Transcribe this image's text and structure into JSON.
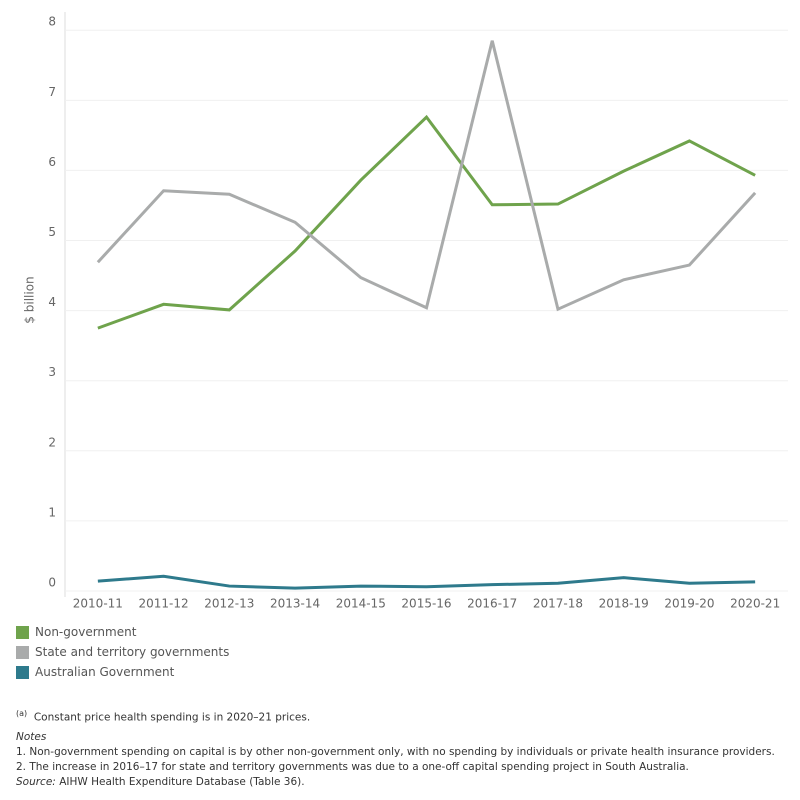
{
  "chart_data": {
    "type": "line",
    "y_label": "$ billion",
    "categories": [
      "2010-11",
      "2011-12",
      "2012-13",
      "2013-14",
      "2014-15",
      "2015-16",
      "2016-17",
      "2017-18",
      "2018-19",
      "2019-20",
      "2020-21"
    ],
    "series": [
      {
        "name": "Non-government",
        "color": "#6fa34c",
        "values": [
          3.75,
          4.09,
          4.01,
          4.85,
          5.86,
          6.76,
          5.51,
          5.52,
          5.99,
          6.42,
          5.93
        ]
      },
      {
        "name": "State and territory governments",
        "color": "#a9abab",
        "values": [
          4.69,
          5.71,
          5.66,
          5.26,
          4.47,
          4.04,
          7.85,
          4.02,
          4.44,
          4.65,
          5.68
        ]
      },
      {
        "name": "Australian Government",
        "color": "#2e7a8c",
        "values": [
          0.14,
          0.21,
          0.07,
          0.04,
          0.07,
          0.06,
          0.09,
          0.11,
          0.19,
          0.11,
          0.13
        ]
      }
    ],
    "ylim": [
      -0.086,
      8.26
    ],
    "yticks": [
      0,
      1,
      2,
      3,
      4,
      5,
      6,
      7,
      8
    ],
    "grid": true
  },
  "notes": {
    "footnote_marker": "(a)",
    "footnote": "Constant price health spending is in 2020–21 prices.",
    "heading": "Notes",
    "items": [
      "1.   Non-government spending on capital is by other non-government only, with no spending by individuals or private health insurance providers.",
      "2.   The increase in 2016–17 for state and territory governments was due to a one-off capital spending project in South Australia."
    ],
    "source_label": "Source:",
    "source": "AIHW Health Expenditure Database (Table 36)."
  }
}
